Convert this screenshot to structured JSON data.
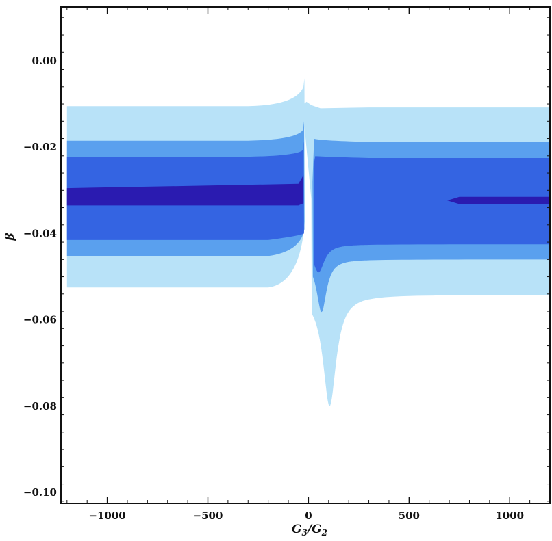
{
  "chart_data": {
    "type": "contour",
    "xlabel": "G3/G2",
    "ylabel": "β",
    "xlim": [
      -1230,
      1200
    ],
    "ylim": [
      -0.1025,
      0.0125
    ],
    "x_ticks": [
      -1000,
      -500,
      0,
      500,
      1000
    ],
    "x_tick_labels": [
      "−1000",
      "−500",
      "0",
      "500",
      "1000"
    ],
    "y_ticks": [
      0.0,
      -0.02,
      -0.04,
      -0.06,
      -0.08,
      -0.1
    ],
    "y_tick_labels": [
      "0.00",
      "−0.02",
      "−0.04",
      "−0.06",
      "−0.08",
      "−0.10"
    ],
    "grid": false,
    "legend": "none",
    "colors": {
      "level1": "#b8e2f8",
      "level2": "#5aa0ee",
      "level3": "#3464e2",
      "level4": "#2a1bb0",
      "frame": "#111111"
    },
    "regions": [
      {
        "level": 1,
        "description_values": "outermost confidence band",
        "left": {
          "x": [
            -1200,
            -20
          ],
          "y_upper": -0.0105,
          "y_lower": -0.0525
        },
        "right": {
          "x": [
            50,
            1200
          ],
          "y_upper": -0.0108,
          "y_lower": -0.0542
        },
        "dip": {
          "x_at_min": 105,
          "y_min": -0.08
        },
        "spike_top": {
          "x": 0,
          "y": -0.0095
        }
      },
      {
        "level": 2,
        "left": {
          "x": [
            -1200,
            -20
          ],
          "y_upper": -0.0185,
          "y_lower": -0.0452
        },
        "right": {
          "x": [
            50,
            1200
          ],
          "y_upper": -0.0188,
          "y_lower": -0.046
        },
        "dip": {
          "x_at_min": 65,
          "y_min": -0.0582
        }
      },
      {
        "level": 3,
        "left": {
          "x": [
            -1200,
            -20
          ],
          "y_upper": -0.0222,
          "y_lower": -0.0415
        },
        "right": {
          "x": [
            50,
            1200
          ],
          "y_upper": -0.0225,
          "y_lower": -0.0425
        },
        "dip": {
          "x_at_min": 50,
          "y_min": -0.049
        }
      },
      {
        "level": 4,
        "left": {
          "x": [
            -1200,
            -50
          ],
          "y_upper": -0.0295,
          "y_lower": -0.0335
        },
        "right": {
          "x": [
            690,
            1200
          ],
          "y_upper": -0.0315,
          "y_lower": -0.0332
        }
      }
    ]
  }
}
